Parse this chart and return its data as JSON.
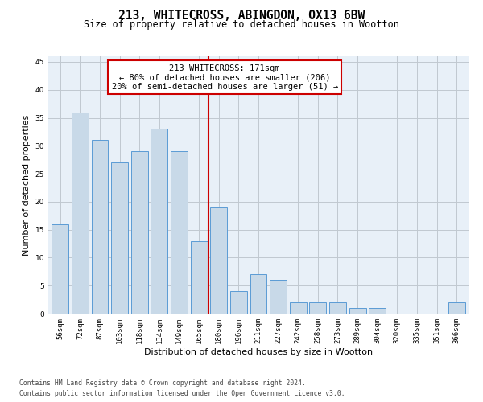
{
  "title": "213, WHITECROSS, ABINGDON, OX13 6BW",
  "subtitle": "Size of property relative to detached houses in Wootton",
  "xlabel": "Distribution of detached houses by size in Wootton",
  "ylabel": "Number of detached properties",
  "categories": [
    "56sqm",
    "72sqm",
    "87sqm",
    "103sqm",
    "118sqm",
    "134sqm",
    "149sqm",
    "165sqm",
    "180sqm",
    "196sqm",
    "211sqm",
    "227sqm",
    "242sqm",
    "258sqm",
    "273sqm",
    "289sqm",
    "304sqm",
    "320sqm",
    "335sqm",
    "351sqm",
    "366sqm"
  ],
  "values": [
    16,
    36,
    31,
    27,
    29,
    33,
    29,
    13,
    19,
    4,
    7,
    6,
    2,
    2,
    2,
    1,
    1,
    0,
    0,
    0,
    2
  ],
  "bar_color": "#c8d9e8",
  "bar_edge_color": "#5b9bd5",
  "vline_x": 7.5,
  "vline_color": "#cc0000",
  "annotation_text": "213 WHITECROSS: 171sqm\n← 80% of detached houses are smaller (206)\n20% of semi-detached houses are larger (51) →",
  "annotation_box_color": "#cc0000",
  "ylim": [
    0,
    46
  ],
  "yticks": [
    0,
    5,
    10,
    15,
    20,
    25,
    30,
    35,
    40,
    45
  ],
  "grid_color": "#c0c8d0",
  "bg_color": "#e8f0f8",
  "footer_line1": "Contains HM Land Registry data © Crown copyright and database right 2024.",
  "footer_line2": "Contains public sector information licensed under the Open Government Licence v3.0.",
  "title_fontsize": 10.5,
  "subtitle_fontsize": 8.5,
  "xlabel_fontsize": 8,
  "ylabel_fontsize": 8,
  "tick_fontsize": 6.5,
  "annotation_fontsize": 7.5,
  "footer_fontsize": 5.8
}
